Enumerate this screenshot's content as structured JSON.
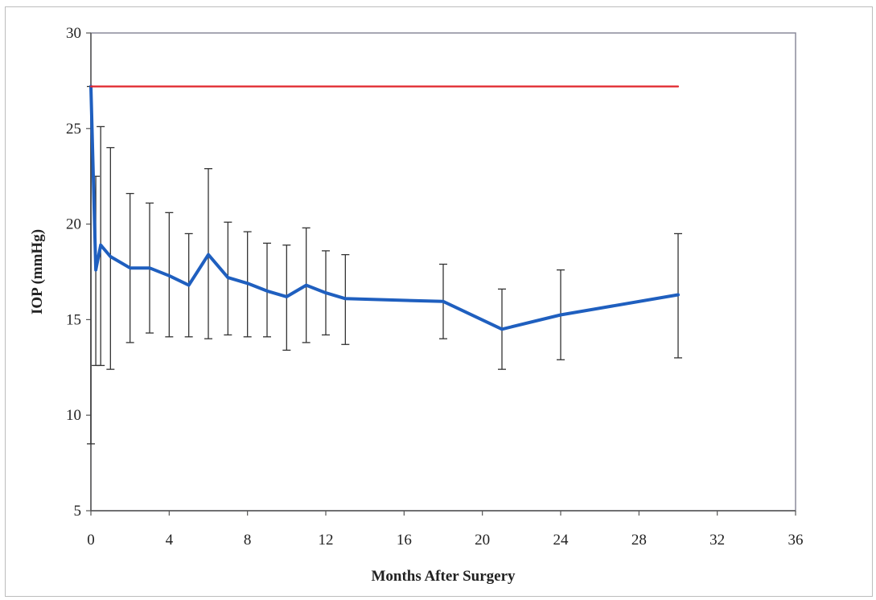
{
  "chart_data": {
    "type": "line",
    "title": "",
    "xlabel": "Months After Surgery",
    "ylabel": "IOP (mmHg)",
    "xlim": [
      0,
      36
    ],
    "ylim": [
      5,
      30
    ],
    "xticks": [
      0,
      4,
      8,
      12,
      16,
      20,
      24,
      28,
      32,
      36
    ],
    "yticks": [
      5,
      10,
      15,
      20,
      25,
      30
    ],
    "grid": false,
    "legend": "none",
    "series": [
      {
        "color": "#1f5fbf",
        "x": [
          0,
          0.25,
          0.5,
          1,
          2,
          3,
          4,
          5,
          6,
          7,
          8,
          9,
          10,
          11,
          12,
          13,
          18,
          21,
          24,
          30
        ],
        "y": [
          27.2,
          17.6,
          18.9,
          18.3,
          17.7,
          17.7,
          17.3,
          16.8,
          18.4,
          17.2,
          16.9,
          16.5,
          16.2,
          16.8,
          16.4,
          16.1,
          15.95,
          14.5,
          15.25,
          16.3
        ],
        "error_upper": [
          27.2,
          22.5,
          25.1,
          24.0,
          21.6,
          21.1,
          20.6,
          19.5,
          22.9,
          20.1,
          19.6,
          19.0,
          18.9,
          19.8,
          18.6,
          18.4,
          17.9,
          16.6,
          17.6,
          19.5
        ],
        "error_lower": [
          8.5,
          12.6,
          12.6,
          12.4,
          13.8,
          14.3,
          14.1,
          14.1,
          14.0,
          14.2,
          14.1,
          14.1,
          13.4,
          13.8,
          14.2,
          13.7,
          14.0,
          12.4,
          12.9,
          13.0
        ]
      },
      {
        "color": "#e0252b",
        "x": [
          0,
          30
        ],
        "y": [
          27.2,
          27.2
        ]
      }
    ]
  }
}
